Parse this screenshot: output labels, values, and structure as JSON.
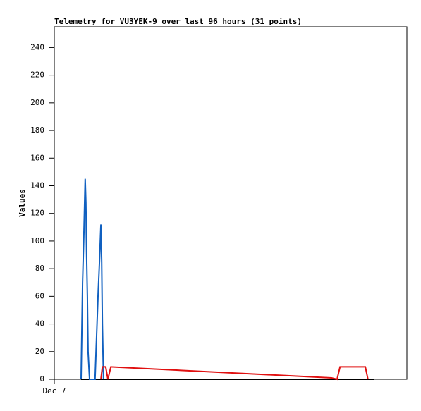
{
  "chart_data": {
    "type": "line",
    "title": "Telemetry for VU3YEK-9 over last 96 hours (31 points)",
    "y_label": "Values",
    "xlim": [
      0,
      96
    ],
    "xticks": [
      {
        "value": 0,
        "label": "Dec 7"
      }
    ],
    "ylim": [
      0,
      255
    ],
    "yticks": [
      0,
      20,
      40,
      60,
      80,
      100,
      120,
      140,
      160,
      180,
      200,
      220,
      240
    ],
    "series": [
      {
        "color": "#000000",
        "x": [
          7.3,
          87.0
        ],
        "values": [
          0,
          0
        ]
      },
      {
        "color": "#1060c0",
        "x": [
          7.3,
          7.7,
          8.1,
          8.4,
          8.6,
          8.8,
          9.0,
          9.2,
          9.6,
          11.1,
          11.9,
          12.3,
          12.7,
          12.9,
          13.1,
          13.4
        ],
        "values": [
          0,
          70,
          110,
          145,
          128,
          90,
          60,
          20,
          0,
          0,
          60,
          85,
          112,
          85,
          40,
          0
        ]
      },
      {
        "color": "#e01010",
        "x": [
          12.7,
          13.1,
          14.0,
          14.6,
          15.4,
          75.5,
          77.0,
          77.8,
          78.5,
          84.7,
          85.4
        ],
        "values": [
          0,
          9,
          9,
          0,
          9,
          1,
          0,
          9,
          9,
          9,
          0
        ]
      }
    ]
  }
}
